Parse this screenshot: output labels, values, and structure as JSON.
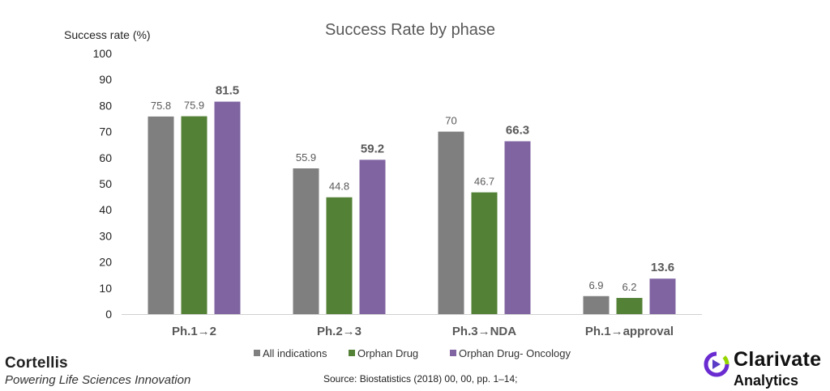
{
  "chart_data": {
    "type": "bar",
    "title": "Success Rate by phase",
    "ylabel": "Success rate (%)",
    "xlabel": "",
    "ylim": [
      0,
      100
    ],
    "yticks": [
      0,
      10,
      20,
      30,
      40,
      50,
      60,
      70,
      80,
      90,
      100
    ],
    "grid": false,
    "legend_position": "bottom",
    "categories": [
      "Ph.1→2",
      "Ph.2→3",
      "Ph.3→NDA",
      "Ph.1→approval"
    ],
    "series": [
      {
        "name": "All indications",
        "color": "#7f7f7f",
        "values": [
          75.8,
          55.9,
          70,
          6.9
        ],
        "labels": [
          "75.8",
          "55.9",
          "70",
          "6.9"
        ],
        "bold_labels": false
      },
      {
        "name": "Orphan Drug",
        "color": "#538135",
        "values": [
          75.9,
          44.8,
          46.7,
          6.2
        ],
        "labels": [
          "75.9",
          "44.8",
          "46.7",
          "6.2"
        ],
        "bold_labels": false
      },
      {
        "name": "Orphan Drug- Oncology",
        "color": "#8064a2",
        "values": [
          81.5,
          59.2,
          66.3,
          13.6
        ],
        "labels": [
          "81.5",
          "59.2",
          "66.3",
          "13.6"
        ],
        "bold_labels": true
      }
    ]
  },
  "footer": {
    "brand_name": "Cortellis",
    "brand_tagline": "Powering Life Sciences Innovation",
    "source": "Source: Biostatistics (2018) 00, 00, pp. 1–14;",
    "logo_name": "Clarivate",
    "logo_sub": "Analytics"
  }
}
